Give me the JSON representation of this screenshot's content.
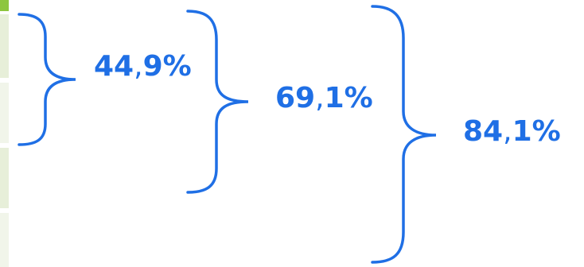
{
  "colors": {
    "accent": "#1f6fe5",
    "strip_green": "#8dc63f",
    "strip_light": "#e7efd9",
    "strip_lighter": "#f1f5ea"
  },
  "labels": [
    {
      "id": "label-1",
      "int": "44",
      "comma": ",",
      "dec": "9%"
    },
    {
      "id": "label-2",
      "int": "69",
      "comma": ",",
      "dec": "1%"
    },
    {
      "id": "label-3",
      "int": "84",
      "comma": ",",
      "dec": "1%"
    }
  ]
}
